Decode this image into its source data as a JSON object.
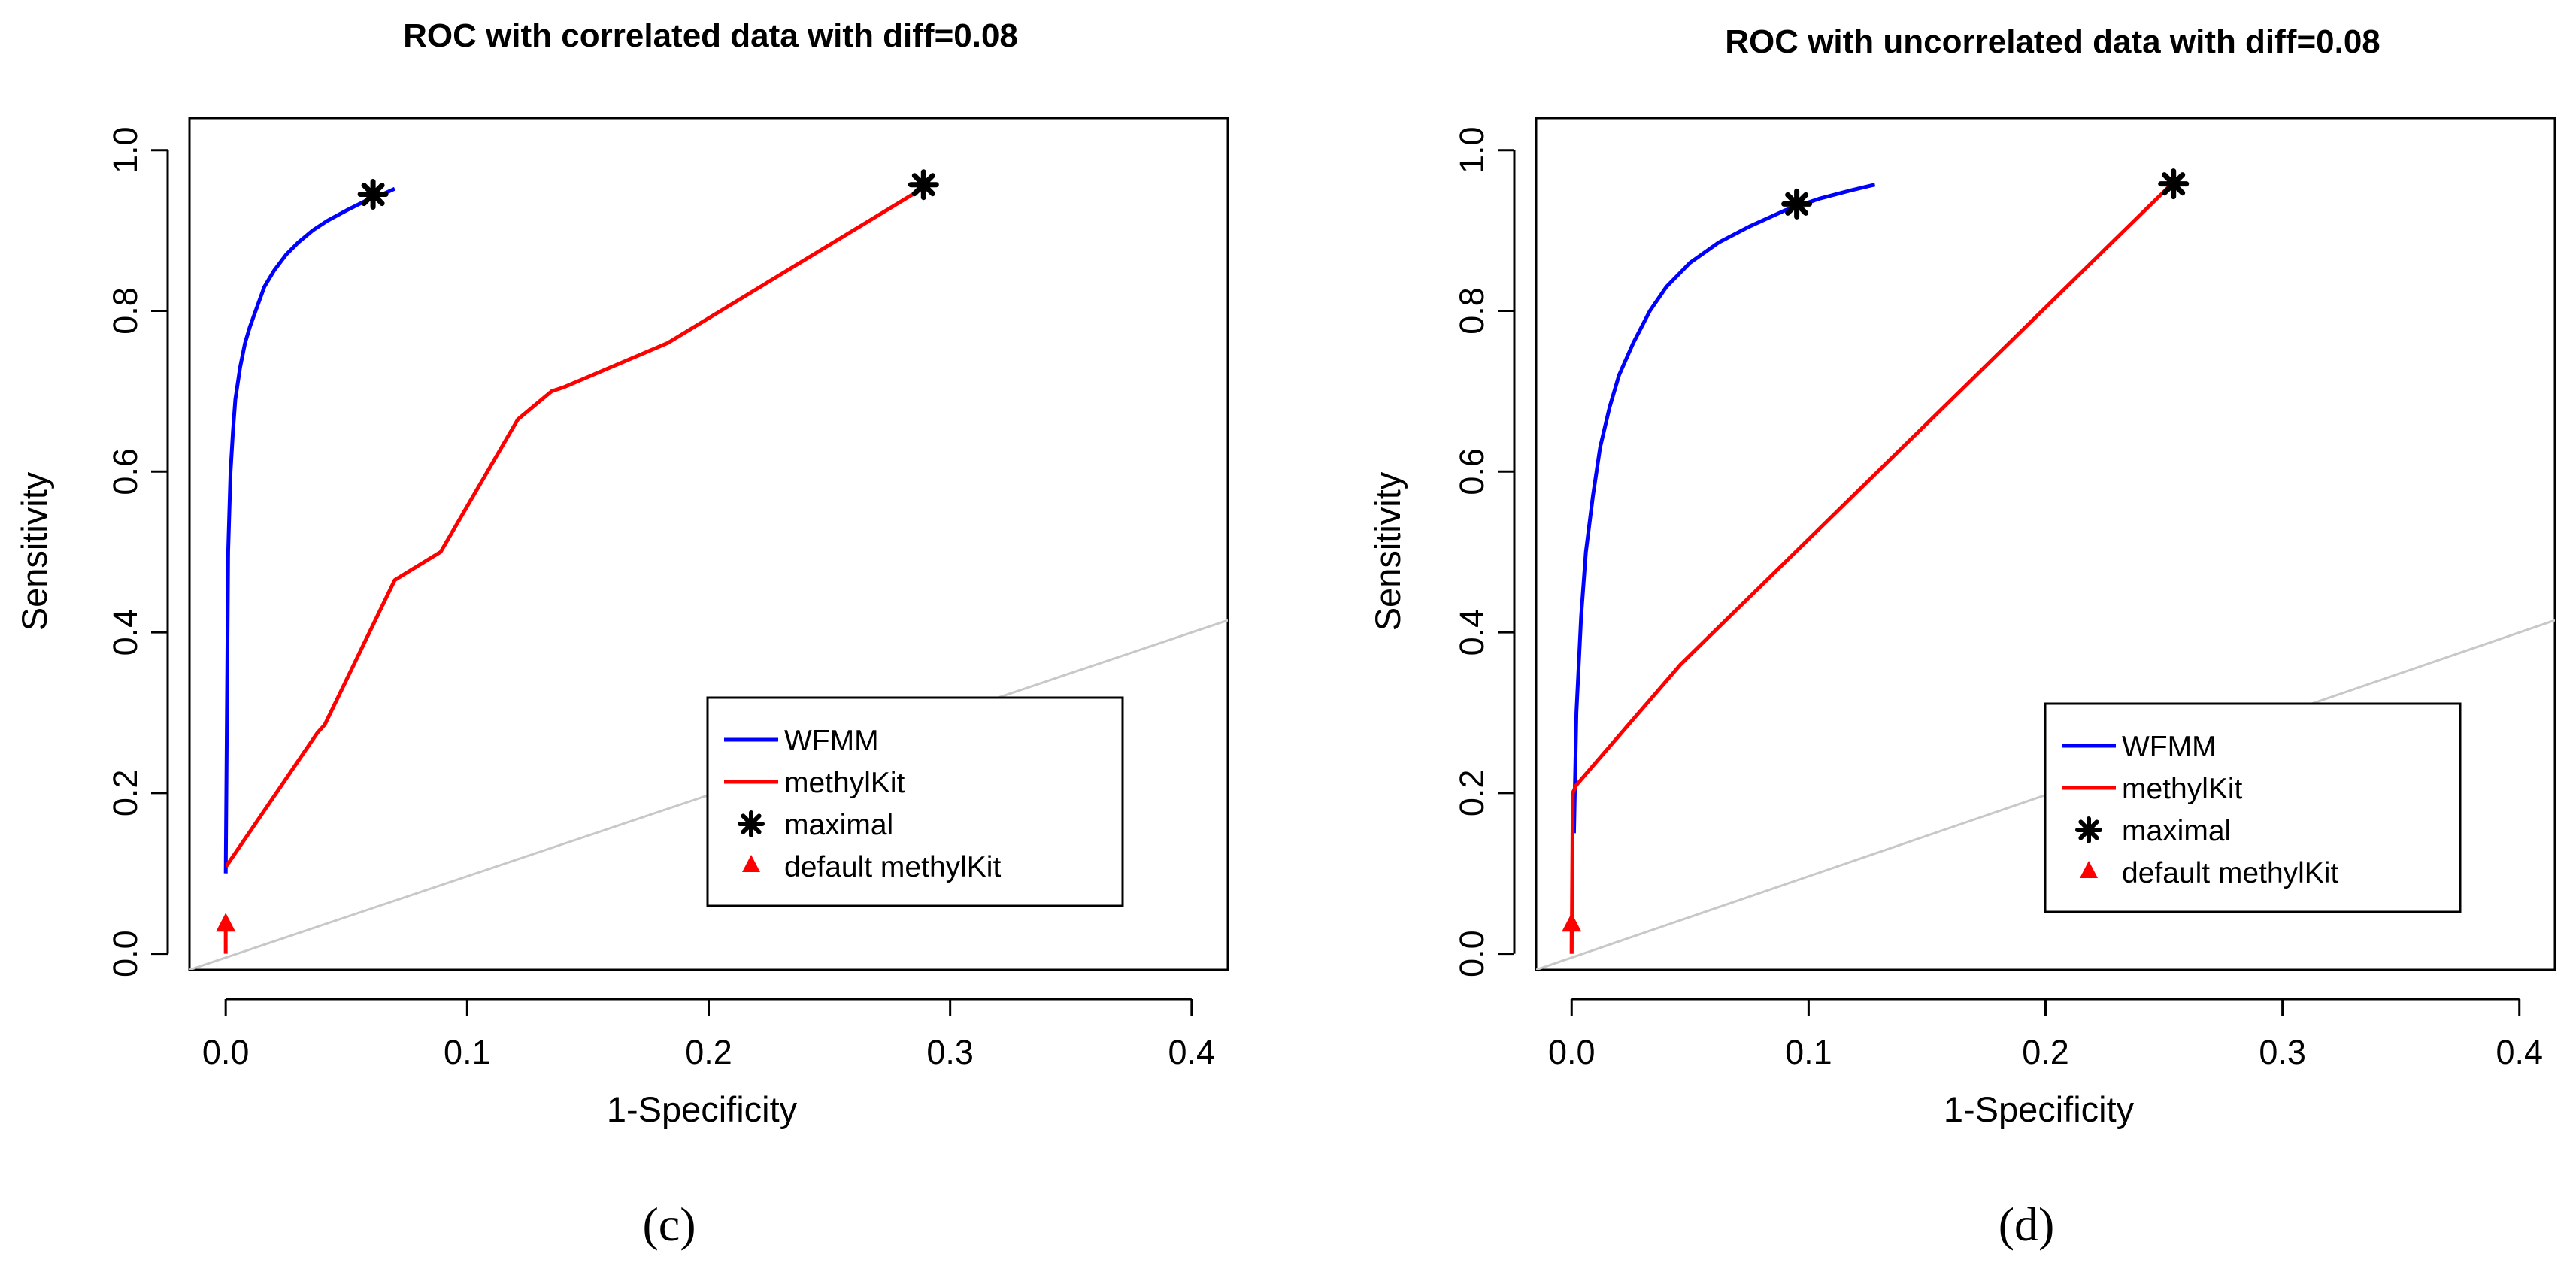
{
  "chart_data": [
    {
      "type": "line",
      "title": "ROC with correlated data with diff=0.08",
      "panel_label": "(c)",
      "xlabel": "1-Specificity",
      "ylabel": "Sensitivity",
      "xlim": [
        -0.015,
        0.415
      ],
      "ylim": [
        -0.02,
        1.04
      ],
      "xticks": [
        "0.0",
        "0.1",
        "0.2",
        "0.3",
        "0.4"
      ],
      "yticks": [
        "0.0",
        "0.2",
        "0.4",
        "0.6",
        "0.8",
        "1.0"
      ],
      "grid": false,
      "legend_position": "bottom-right",
      "legend": [
        "WFMM",
        "methylKit",
        "maximal",
        "default methylKit"
      ],
      "colors": {
        "WFMM": "#0000ff",
        "methylKit": "#ff0000",
        "maximal": "#000000",
        "default methylKit": "#ff0000",
        "reference": "#c8c8c8"
      },
      "series": [
        {
          "name": "WFMM",
          "x": [
            0.0,
            0.0005,
            0.001,
            0.002,
            0.003,
            0.004,
            0.006,
            0.008,
            0.01,
            0.013,
            0.016,
            0.02,
            0.025,
            0.03,
            0.036,
            0.042,
            0.05,
            0.058,
            0.065,
            0.07
          ],
          "y": [
            0.1,
            0.3,
            0.5,
            0.6,
            0.65,
            0.69,
            0.73,
            0.76,
            0.78,
            0.805,
            0.83,
            0.85,
            0.87,
            0.885,
            0.9,
            0.912,
            0.925,
            0.937,
            0.945,
            0.952
          ]
        },
        {
          "name": "methylKit",
          "x": [
            0.0,
            0.0005,
            0.038,
            0.041,
            0.07,
            0.089,
            0.121,
            0.135,
            0.14,
            0.183,
            0.29
          ],
          "y": [
            0.11,
            0.11,
            0.275,
            0.285,
            0.465,
            0.5,
            0.665,
            0.7,
            0.705,
            0.76,
            0.955
          ]
        }
      ],
      "maximal_points": [
        {
          "x": 0.061,
          "y": 0.945
        },
        {
          "x": 0.289,
          "y": 0.957
        }
      ],
      "default_methylKit_point": {
        "x": 0.0,
        "y": 0.035
      },
      "default_methylKit_segment": {
        "y_from": 0.0,
        "y_to": 0.035
      },
      "reference_line": {
        "x": [
          -0.015,
          0.415
        ],
        "y": [
          -0.02,
          0.415
        ]
      }
    },
    {
      "type": "line",
      "title": "ROC with uncorrelated data with diff=0.08",
      "panel_label": "(d)",
      "xlabel": "1-Specificity",
      "ylabel": "Sensitivity",
      "xlim": [
        -0.015,
        0.415
      ],
      "ylim": [
        -0.02,
        1.04
      ],
      "xticks": [
        "0.0",
        "0.1",
        "0.2",
        "0.3",
        "0.4"
      ],
      "yticks": [
        "0.0",
        "0.2",
        "0.4",
        "0.6",
        "0.8",
        "1.0"
      ],
      "grid": false,
      "legend_position": "bottom-right",
      "legend": [
        "WFMM",
        "methylKit",
        "maximal",
        "default methylKit"
      ],
      "colors": {
        "WFMM": "#0000ff",
        "methylKit": "#ff0000",
        "maximal": "#000000",
        "default methylKit": "#ff0000",
        "reference": "#c8c8c8"
      },
      "series": [
        {
          "name": "WFMM",
          "x": [
            0.001,
            0.002,
            0.004,
            0.006,
            0.009,
            0.012,
            0.016,
            0.02,
            0.026,
            0.033,
            0.04,
            0.05,
            0.062,
            0.075,
            0.09,
            0.105,
            0.118,
            0.128
          ],
          "y": [
            0.15,
            0.3,
            0.42,
            0.5,
            0.57,
            0.63,
            0.68,
            0.72,
            0.76,
            0.8,
            0.83,
            0.86,
            0.885,
            0.905,
            0.925,
            0.94,
            0.95,
            0.957
          ]
        },
        {
          "name": "methylKit",
          "x": [
            0.0,
            0.0005,
            0.002,
            0.046,
            0.253
          ],
          "y": [
            0.0,
            0.2,
            0.21,
            0.36,
            0.957
          ]
        }
      ],
      "maximal_points": [
        {
          "x": 0.095,
          "y": 0.933
        },
        {
          "x": 0.254,
          "y": 0.958
        }
      ],
      "default_methylKit_point": {
        "x": 0.0,
        "y": 0.035
      },
      "default_methylKit_segment": {
        "y_from": 0.0,
        "y_to": 0.035
      },
      "reference_line": {
        "x": [
          -0.015,
          0.415
        ],
        "y": [
          -0.02,
          0.415
        ]
      }
    }
  ]
}
